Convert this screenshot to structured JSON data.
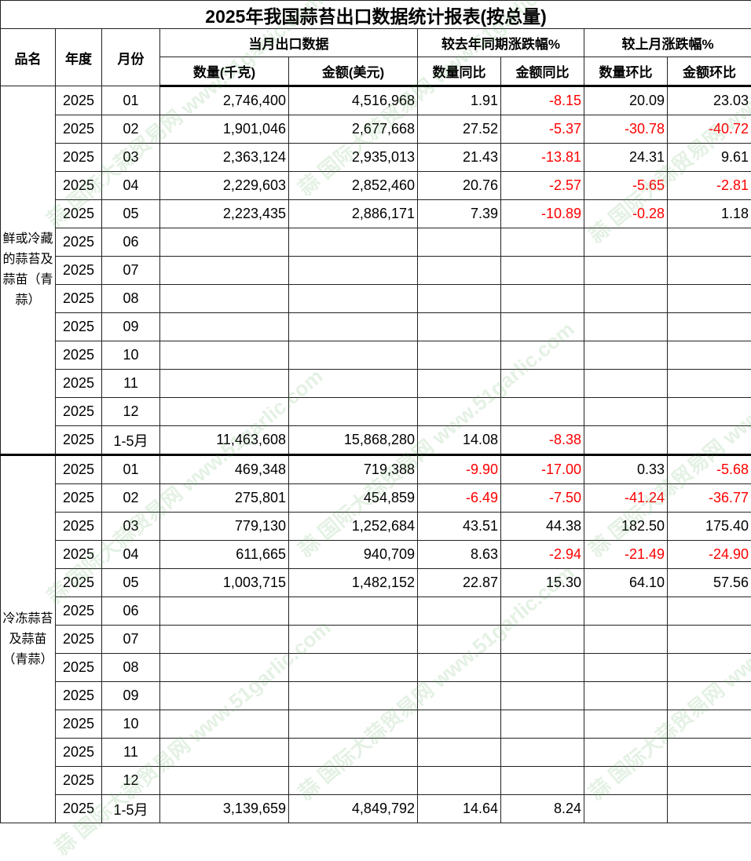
{
  "title": "2025年我国蒜苔出口数据统计报表(按总量)",
  "headers": {
    "product": "品名",
    "year": "年度",
    "month": "月份",
    "monthly_group": "当月出口数据",
    "yoy_group": "较去年同期涨跌幅%",
    "mom_group": "较上月涨跌幅%",
    "qty": "数量(千克)",
    "amount": "金额(美元)",
    "qty_yoy": "数量同比",
    "amount_yoy": "金额同比",
    "qty_mom": "数量环比",
    "amount_mom": "金额环比"
  },
  "colors": {
    "negative": "#ff0000",
    "text": "#000000",
    "watermark": "#5aaa5a"
  },
  "watermark": "蒜 国际大蒜贸易网 www.51garlic.com",
  "groups": [
    {
      "product": "鲜或冷藏的蒜苔及蒜苗（青蒜）",
      "rows": [
        [
          "2025",
          "01",
          "2,746,400",
          "4,516,968",
          "1.91",
          "-8.15",
          "20.09",
          "23.03"
        ],
        [
          "2025",
          "02",
          "1,901,046",
          "2,677,668",
          "27.52",
          "-5.37",
          "-30.78",
          "-40.72"
        ],
        [
          "2025",
          "03",
          "2,363,124",
          "2,935,013",
          "21.43",
          "-13.81",
          "24.31",
          "9.61"
        ],
        [
          "2025",
          "04",
          "2,229,603",
          "2,852,460",
          "20.76",
          "-2.57",
          "-5.65",
          "-2.81"
        ],
        [
          "2025",
          "05",
          "2,223,435",
          "2,886,171",
          "7.39",
          "-10.89",
          "-0.28",
          "1.18"
        ],
        [
          "2025",
          "06",
          "",
          "",
          "",
          "",
          "",
          ""
        ],
        [
          "2025",
          "07",
          "",
          "",
          "",
          "",
          "",
          ""
        ],
        [
          "2025",
          "08",
          "",
          "",
          "",
          "",
          "",
          ""
        ],
        [
          "2025",
          "09",
          "",
          "",
          "",
          "",
          "",
          ""
        ],
        [
          "2025",
          "10",
          "",
          "",
          "",
          "",
          "",
          ""
        ],
        [
          "2025",
          "11",
          "",
          "",
          "",
          "",
          "",
          ""
        ],
        [
          "2025",
          "12",
          "",
          "",
          "",
          "",
          "",
          ""
        ],
        [
          "2025",
          "1-5月",
          "11,463,608",
          "15,868,280",
          "14.08",
          "-8.38",
          "",
          ""
        ]
      ]
    },
    {
      "product": "冷冻蒜苔及蒜苗（青蒜）",
      "rows": [
        [
          "2025",
          "01",
          "469,348",
          "719,388",
          "-9.90",
          "-17.00",
          "0.33",
          "-5.68"
        ],
        [
          "2025",
          "02",
          "275,801",
          "454,859",
          "-6.49",
          "-7.50",
          "-41.24",
          "-36.77"
        ],
        [
          "2025",
          "03",
          "779,130",
          "1,252,684",
          "43.51",
          "44.38",
          "182.50",
          "175.40"
        ],
        [
          "2025",
          "04",
          "611,665",
          "940,709",
          "8.63",
          "-2.94",
          "-21.49",
          "-24.90"
        ],
        [
          "2025",
          "05",
          "1,003,715",
          "1,482,152",
          "22.87",
          "15.30",
          "64.10",
          "57.56"
        ],
        [
          "2025",
          "06",
          "",
          "",
          "",
          "",
          "",
          ""
        ],
        [
          "2025",
          "07",
          "",
          "",
          "",
          "",
          "",
          ""
        ],
        [
          "2025",
          "08",
          "",
          "",
          "",
          "",
          "",
          ""
        ],
        [
          "2025",
          "09",
          "",
          "",
          "",
          "",
          "",
          ""
        ],
        [
          "2025",
          "10",
          "",
          "",
          "",
          "",
          "",
          ""
        ],
        [
          "2025",
          "11",
          "",
          "",
          "",
          "",
          "",
          ""
        ],
        [
          "2025",
          "12",
          "",
          "",
          "",
          "",
          "",
          ""
        ],
        [
          "2025",
          "1-5月",
          "3,139,659",
          "4,849,792",
          "14.64",
          "8.24",
          "",
          ""
        ]
      ]
    }
  ]
}
